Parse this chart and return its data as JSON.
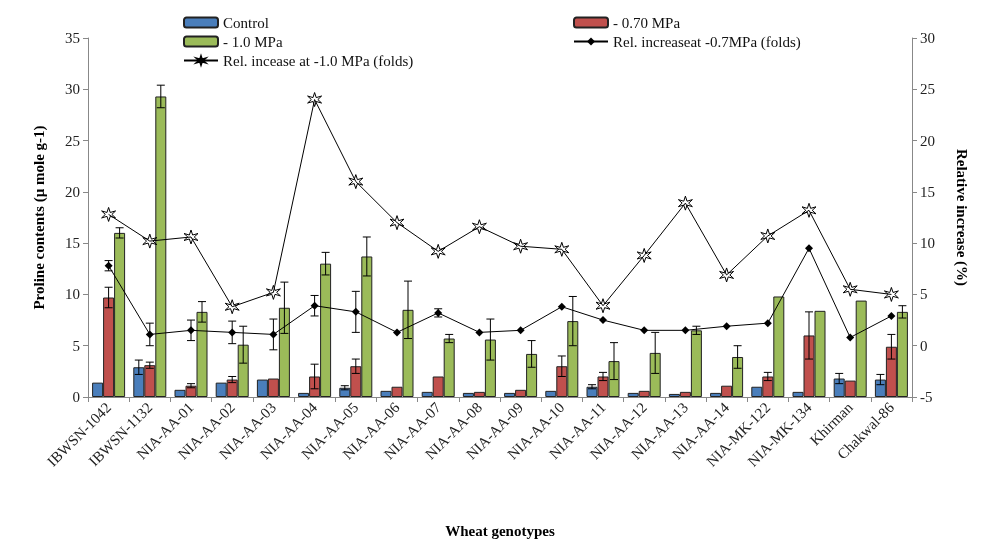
{
  "chart_data": {
    "type": "bar",
    "xlabel": "Wheat genotypes",
    "ylabel": "Proline contents (µ mole g-1)",
    "y2label": "Relative increase (%)",
    "categories": [
      "IBWSN-1042",
      "IBWSN-1132",
      "NIA-AA-01",
      "NIA-AA-02",
      "NIA-AA-03",
      "NIA-AA-04",
      "NIA-AA-05",
      "NIA-AA-06",
      "NIA-AA-07",
      "NIA-AA-08",
      "NIA-AA-09",
      "NIA-AA-10",
      "NIA-AA-11",
      "NIA-AA-12",
      "NIA-AA-13",
      "NIA-AA-14",
      "NIA-MK-122",
      "NIA-MK-134",
      "Khirman",
      "Chakwal-86"
    ],
    "series": [
      {
        "name": "Control",
        "color": "#4a7ebb",
        "values": [
          1.4,
          2.9,
          0.7,
          1.4,
          1.7,
          0.4,
          0.9,
          0.6,
          0.5,
          0.4,
          0.4,
          0.6,
          1.0,
          0.4,
          0.3,
          0.4,
          1.0,
          0.5,
          1.8,
          1.7
        ],
        "errors": [
          null,
          0.7,
          null,
          null,
          null,
          null,
          0.2,
          null,
          null,
          null,
          null,
          null,
          0.2,
          null,
          null,
          null,
          null,
          null,
          0.5,
          0.5
        ]
      },
      {
        "name": "- 0.70 MPa",
        "color": "#c0504d",
        "values": [
          9.7,
          3.1,
          1.1,
          1.7,
          1.8,
          2.0,
          3.0,
          1.0,
          2.0,
          0.5,
          0.7,
          3.0,
          2.0,
          0.6,
          0.5,
          1.1,
          2.0,
          6.0,
          1.6,
          4.9
        ],
        "errors": [
          1.0,
          0.3,
          0.2,
          0.3,
          null,
          1.2,
          0.7,
          null,
          null,
          null,
          null,
          1.0,
          0.4,
          null,
          null,
          null,
          0.4,
          2.3,
          null,
          1.2
        ]
      },
      {
        "name": "- 1.0 MPa",
        "color": "#9bbb59",
        "values": [
          16.0,
          29.3,
          8.3,
          5.1,
          8.7,
          13.0,
          13.7,
          8.5,
          5.7,
          5.6,
          4.2,
          7.4,
          3.5,
          4.3,
          6.5,
          3.9,
          9.8,
          8.4,
          9.4,
          8.3
        ],
        "errors": [
          0.5,
          1.1,
          1.0,
          1.8,
          2.5,
          1.1,
          1.9,
          2.8,
          0.4,
          2.0,
          1.3,
          2.4,
          1.8,
          2.0,
          0.4,
          1.1,
          null,
          null,
          null,
          0.6
        ]
      },
      {
        "name": "Rel. increaseat -0.7MPa (folds)",
        "type": "line",
        "axis": "y2",
        "marker": "diamond",
        "color": "#000000",
        "values": [
          7.8,
          1.1,
          1.5,
          1.3,
          1.1,
          3.9,
          3.3,
          1.3,
          3.2,
          1.3,
          1.5,
          3.8,
          2.5,
          1.5,
          1.5,
          1.9,
          2.2,
          9.5,
          0.8,
          2.9
        ],
        "errors": [
          0.5,
          1.1,
          1.0,
          1.1,
          1.5,
          1.0,
          2.0,
          null,
          0.4,
          null,
          null,
          null,
          null,
          null,
          null,
          null,
          null,
          null,
          null,
          null
        ]
      },
      {
        "name": "Rel. incease at -1.0 MPa (folds)",
        "type": "line",
        "axis": "y2",
        "marker": "cross",
        "color": "#000000",
        "values": [
          12.8,
          10.2,
          10.6,
          3.8,
          5.2,
          24.0,
          16.0,
          12.0,
          9.2,
          11.6,
          9.7,
          9.4,
          3.9,
          8.8,
          13.9,
          6.9,
          10.7,
          13.2,
          5.5,
          5.0
        ]
      }
    ],
    "ylim": [
      0,
      35
    ],
    "yticks": [
      0,
      5,
      10,
      15,
      20,
      25,
      30,
      35
    ],
    "y2lim": [
      -5,
      30
    ],
    "y2ticks": [
      -5,
      0,
      5,
      10,
      15,
      20,
      25,
      30
    ],
    "grid": false,
    "legend": "top"
  }
}
